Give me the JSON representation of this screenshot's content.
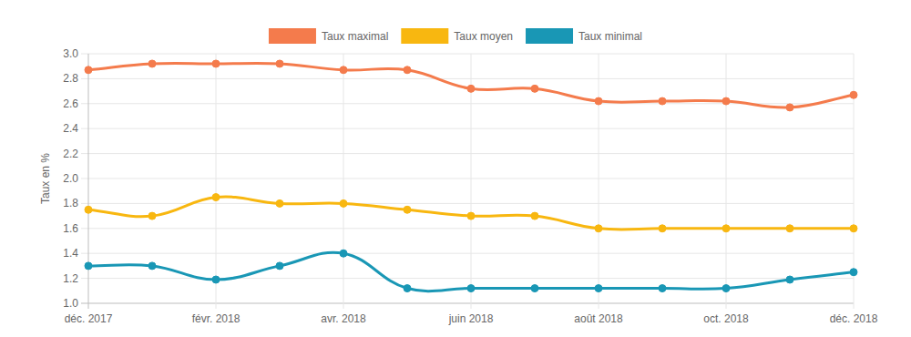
{
  "chart_data": {
    "type": "line",
    "y_label": "Taux en %",
    "categories": [
      "déc. 2017",
      null,
      "févr. 2018",
      null,
      "avr. 2018",
      null,
      "juin 2018",
      null,
      "août 2018",
      null,
      "oct. 2018",
      null,
      "déc. 2018"
    ],
    "series": [
      {
        "name": "Taux maximal",
        "color": "#f47b4c",
        "marker": "circle",
        "values": [
          2.87,
          2.92,
          2.92,
          2.92,
          2.87,
          2.87,
          2.72,
          2.72,
          2.62,
          2.62,
          2.62,
          2.57,
          2.67
        ]
      },
      {
        "name": "Taux moyen",
        "color": "#f8b710",
        "marker": "circle",
        "values": [
          1.75,
          1.7,
          1.85,
          1.8,
          1.8,
          1.75,
          1.7,
          1.7,
          1.6,
          1.6,
          1.6,
          1.6,
          1.6
        ]
      },
      {
        "name": "Taux minimal",
        "color": "#1997b5",
        "marker": "circle",
        "values": [
          1.3,
          1.3,
          1.19,
          1.3,
          1.4,
          1.12,
          1.12,
          1.12,
          1.12,
          1.12,
          1.12,
          1.19,
          1.25
        ]
      }
    ],
    "ylim": [
      1.0,
      3.0
    ],
    "yticks": [
      {
        "value": 1.0,
        "label": "1.0"
      },
      1.2,
      1.4,
      1.6,
      1.8,
      {
        "value": 2.0,
        "label": "2.0"
      },
      2.2,
      2.4,
      2.6,
      2.8,
      {
        "value": 3.0,
        "label": "3.0"
      }
    ],
    "grid": true,
    "legend": "top"
  }
}
